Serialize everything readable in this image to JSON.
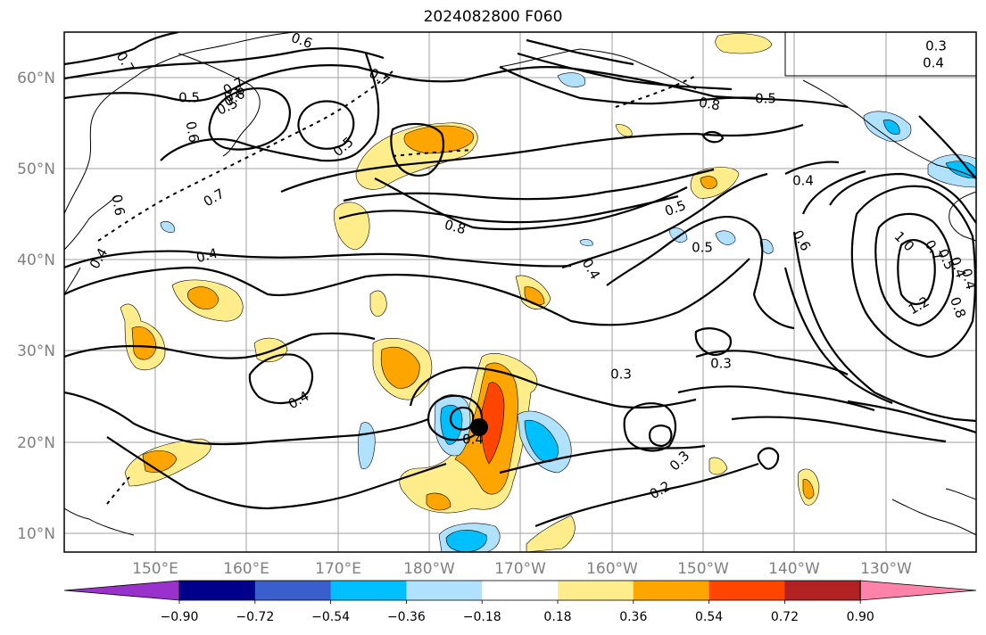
{
  "title": "2024082800 F060",
  "map": {
    "lat_labels": [
      "60°N",
      "50°N",
      "40°N",
      "30°N",
      "20°N",
      "10°N"
    ],
    "lon_labels": [
      "150°E",
      "160°E",
      "170°E",
      "180°W",
      "170°W",
      "160°W",
      "150°W",
      "140°W",
      "130°W"
    ],
    "contour_labels": [
      "0.7",
      "0.6",
      "0.4",
      "0.3",
      "0.4",
      "0.8",
      "0.7",
      "0.5",
      "0.6",
      "0.7",
      "0.5",
      "0.6",
      "0.5",
      "0.7",
      "0.5",
      "0.8",
      "0.5",
      "0.4",
      "0.5",
      "0.4",
      "0.6",
      "1.0",
      "0.8",
      "0.4",
      "1.2",
      "0.6",
      "0.4",
      "0.3",
      "0.3",
      "0.4",
      "0.4",
      "0.3",
      "0.2",
      "0.7",
      "0.4",
      "0.5",
      "0.6"
    ],
    "storm_marker": "storm-center"
  },
  "colorbar": {
    "ticks": [
      "−0.90",
      "−0.72",
      "−0.54",
      "−0.36",
      "−0.18",
      "0.18",
      "0.36",
      "0.54",
      "0.72",
      "0.90"
    ],
    "colors": [
      "#9932cc",
      "#00008b",
      "#3a5fcd",
      "#00bfff",
      "#b0e2ff",
      "#ffffff",
      "#ffec8b",
      "#ffa500",
      "#ff4500",
      "#b22222",
      "#ff82ab"
    ]
  }
}
